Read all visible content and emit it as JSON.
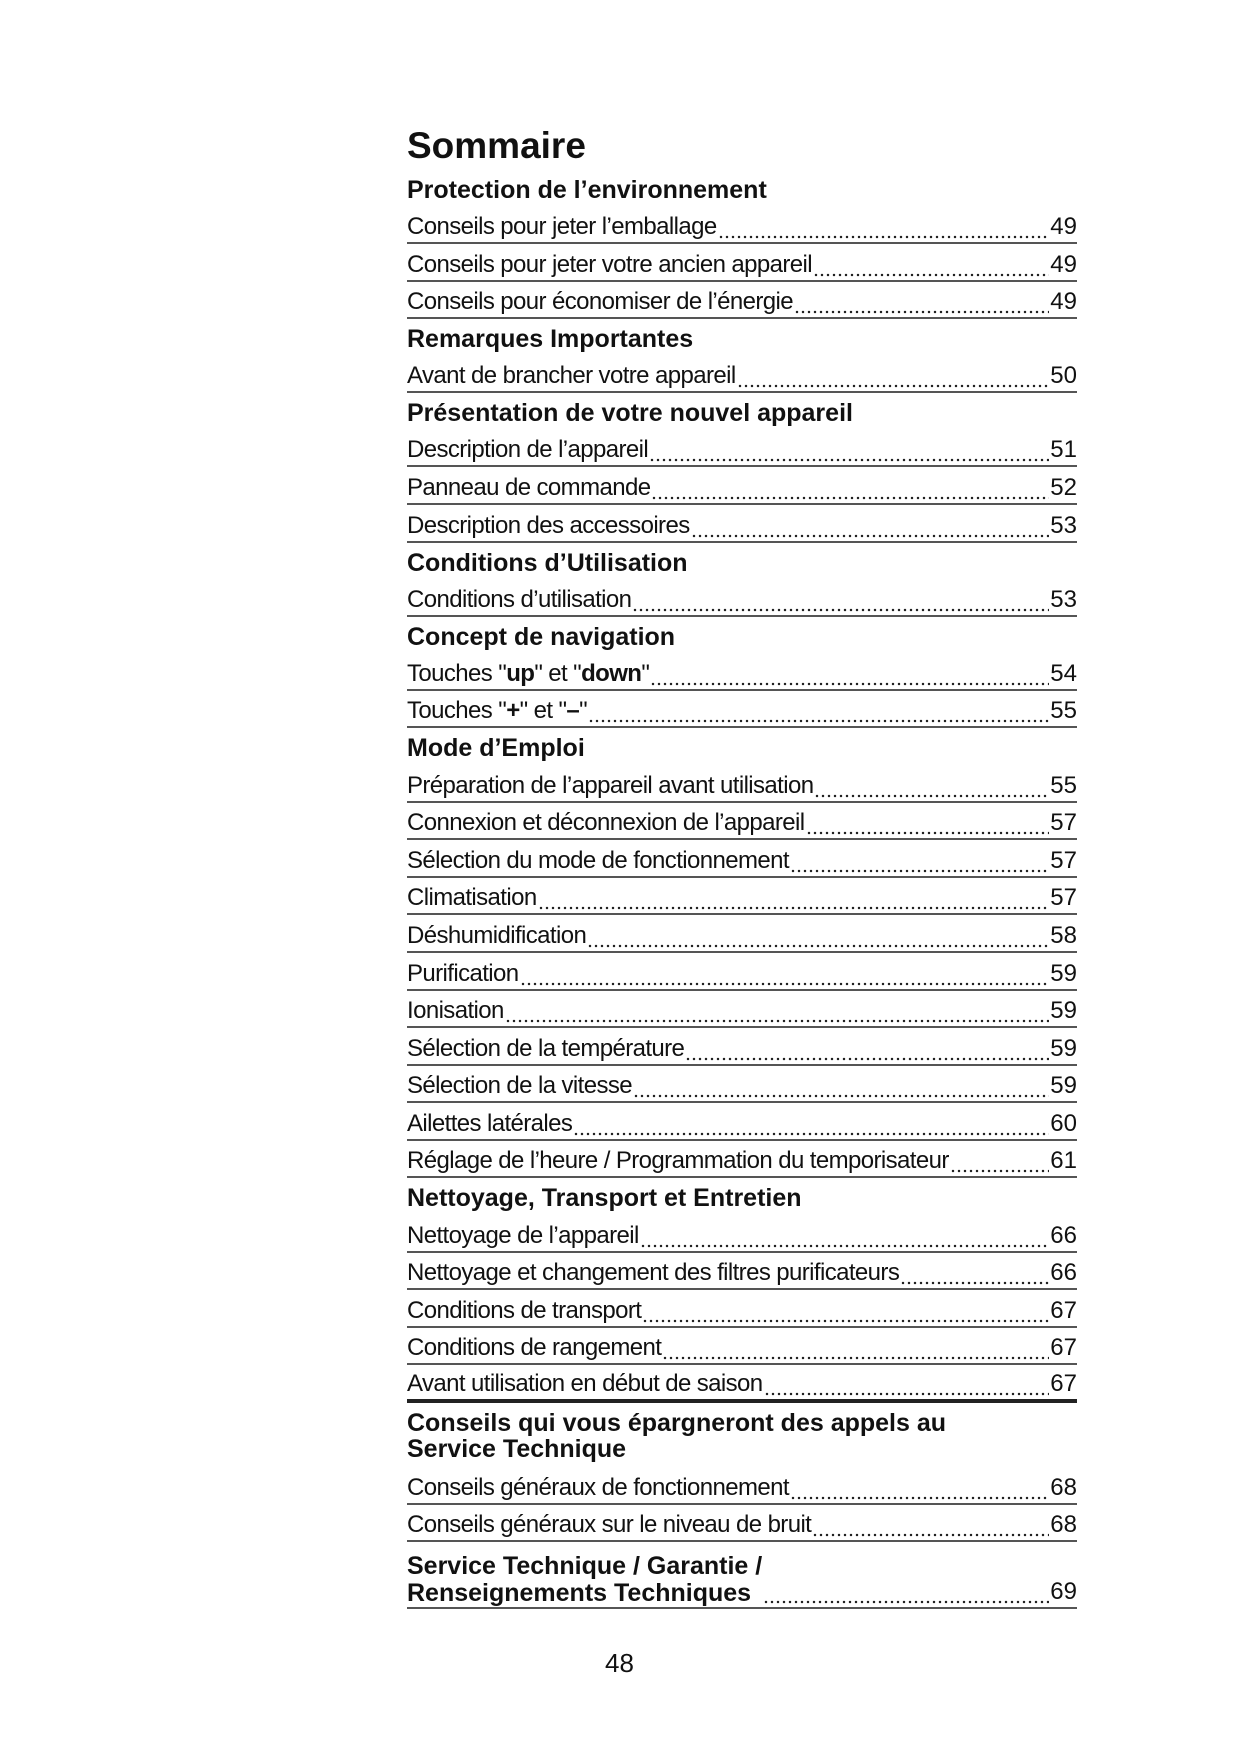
{
  "title": "Sommaire",
  "sections": [
    {
      "heading": [
        "Protection de l’environnement"
      ],
      "entries": [
        {
          "label": [
            {
              "t": "Conseils pour jeter l’emballage"
            }
          ],
          "page": "49"
        },
        {
          "label": [
            {
              "t": "Conseils pour jeter votre ancien appareil "
            }
          ],
          "page": "49"
        },
        {
          "label": [
            {
              "t": "Conseils pour économiser de l’énergie"
            }
          ],
          "page": "49"
        }
      ]
    },
    {
      "heading": [
        "Remarques Importantes"
      ],
      "entries": [
        {
          "label": [
            {
              "t": "Avant de brancher votre appareil"
            }
          ],
          "page": "50"
        }
      ]
    },
    {
      "heading": [
        "Présentation de votre nouvel appareil"
      ],
      "entries": [
        {
          "label": [
            {
              "t": "Description de l’appareil"
            }
          ],
          "page": "51"
        },
        {
          "label": [
            {
              "t": "Panneau de commande"
            }
          ],
          "page": "52"
        },
        {
          "label": [
            {
              "t": "Description des accessoires"
            }
          ],
          "page": "53"
        }
      ]
    },
    {
      "heading": [
        "Conditions d’Utilisation"
      ],
      "entries": [
        {
          "label": [
            {
              "t": "Conditions  d’utilisation"
            }
          ],
          "page": "53"
        }
      ]
    },
    {
      "heading": [
        "Concept de navigation"
      ],
      "entries": [
        {
          "label": [
            {
              "t": "Touches \""
            },
            {
              "t": "up",
              "b": true
            },
            {
              "t": "\" et \""
            },
            {
              "t": "down",
              "b": true
            },
            {
              "t": "\""
            }
          ],
          "page": "54"
        },
        {
          "label": [
            {
              "t": "Touches \""
            },
            {
              "t": "+",
              "b": true
            },
            {
              "t": "\" et \""
            },
            {
              "t": "–",
              "b": true
            },
            {
              "t": "\" "
            }
          ],
          "page": "55"
        }
      ]
    },
    {
      "heading": [
        "Mode d’Emploi"
      ],
      "entries": [
        {
          "label": [
            {
              "t": "Préparation de l’appareil avant utilisation"
            }
          ],
          "page": "55"
        },
        {
          "label": [
            {
              "t": "Connexion et déconnexion de l’appareil"
            }
          ],
          "page": "57"
        },
        {
          "label": [
            {
              "t": "Sélection du mode de fonctionnement "
            }
          ],
          "page": "57"
        },
        {
          "label": [
            {
              "t": "Climatisation"
            }
          ],
          "page": "57"
        },
        {
          "label": [
            {
              "t": "Déshumidification"
            }
          ],
          "page": "58"
        },
        {
          "label": [
            {
              "t": "Purification "
            }
          ],
          "page": "59"
        },
        {
          "label": [
            {
              "t": "Ionisation"
            }
          ],
          "page": "59"
        },
        {
          "label": [
            {
              "t": "Sélection de la température"
            }
          ],
          "page": "59"
        },
        {
          "label": [
            {
              "t": "Sélection de la vitesse"
            }
          ],
          "page": "59"
        },
        {
          "label": [
            {
              "t": "Ailettes latérales"
            }
          ],
          "page": "60"
        },
        {
          "label": [
            {
              "t": "Réglage de l’heure / Programmation du  temporisateur"
            }
          ],
          "page": "61"
        }
      ]
    },
    {
      "heading": [
        "Nettoyage, Transport et Entretien"
      ],
      "entries": [
        {
          "label": [
            {
              "t": "Nettoyage  de  l’appareil"
            }
          ],
          "page": "66"
        },
        {
          "label": [
            {
              "t": "Nettoyage et changement des filtres purificateurs "
            }
          ],
          "page": "66"
        },
        {
          "label": [
            {
              "t": "Conditions de transport"
            }
          ],
          "page": "67"
        },
        {
          "label": [
            {
              "t": "Conditions de rangement"
            }
          ],
          "page": "67"
        },
        {
          "label": [
            {
              "t": "Avant utilisation en début de saison"
            }
          ],
          "page": "67",
          "thick": true
        }
      ]
    },
    {
      "heading": [
        "Conseils qui vous épargneront des appels au",
        "Service Technique"
      ],
      "entries": [
        {
          "label": [
            {
              "t": "Conseils généraux de fonctionnement "
            }
          ],
          "page": "68"
        },
        {
          "label": [
            {
              "t": "Conseils généraux sur le niveau de bruit "
            }
          ],
          "page": "68"
        }
      ]
    }
  ],
  "last_section": {
    "heading": [
      "Service Technique / Garantie /",
      "Renseignements Techniques"
    ],
    "page": "69"
  },
  "page_number": "48"
}
